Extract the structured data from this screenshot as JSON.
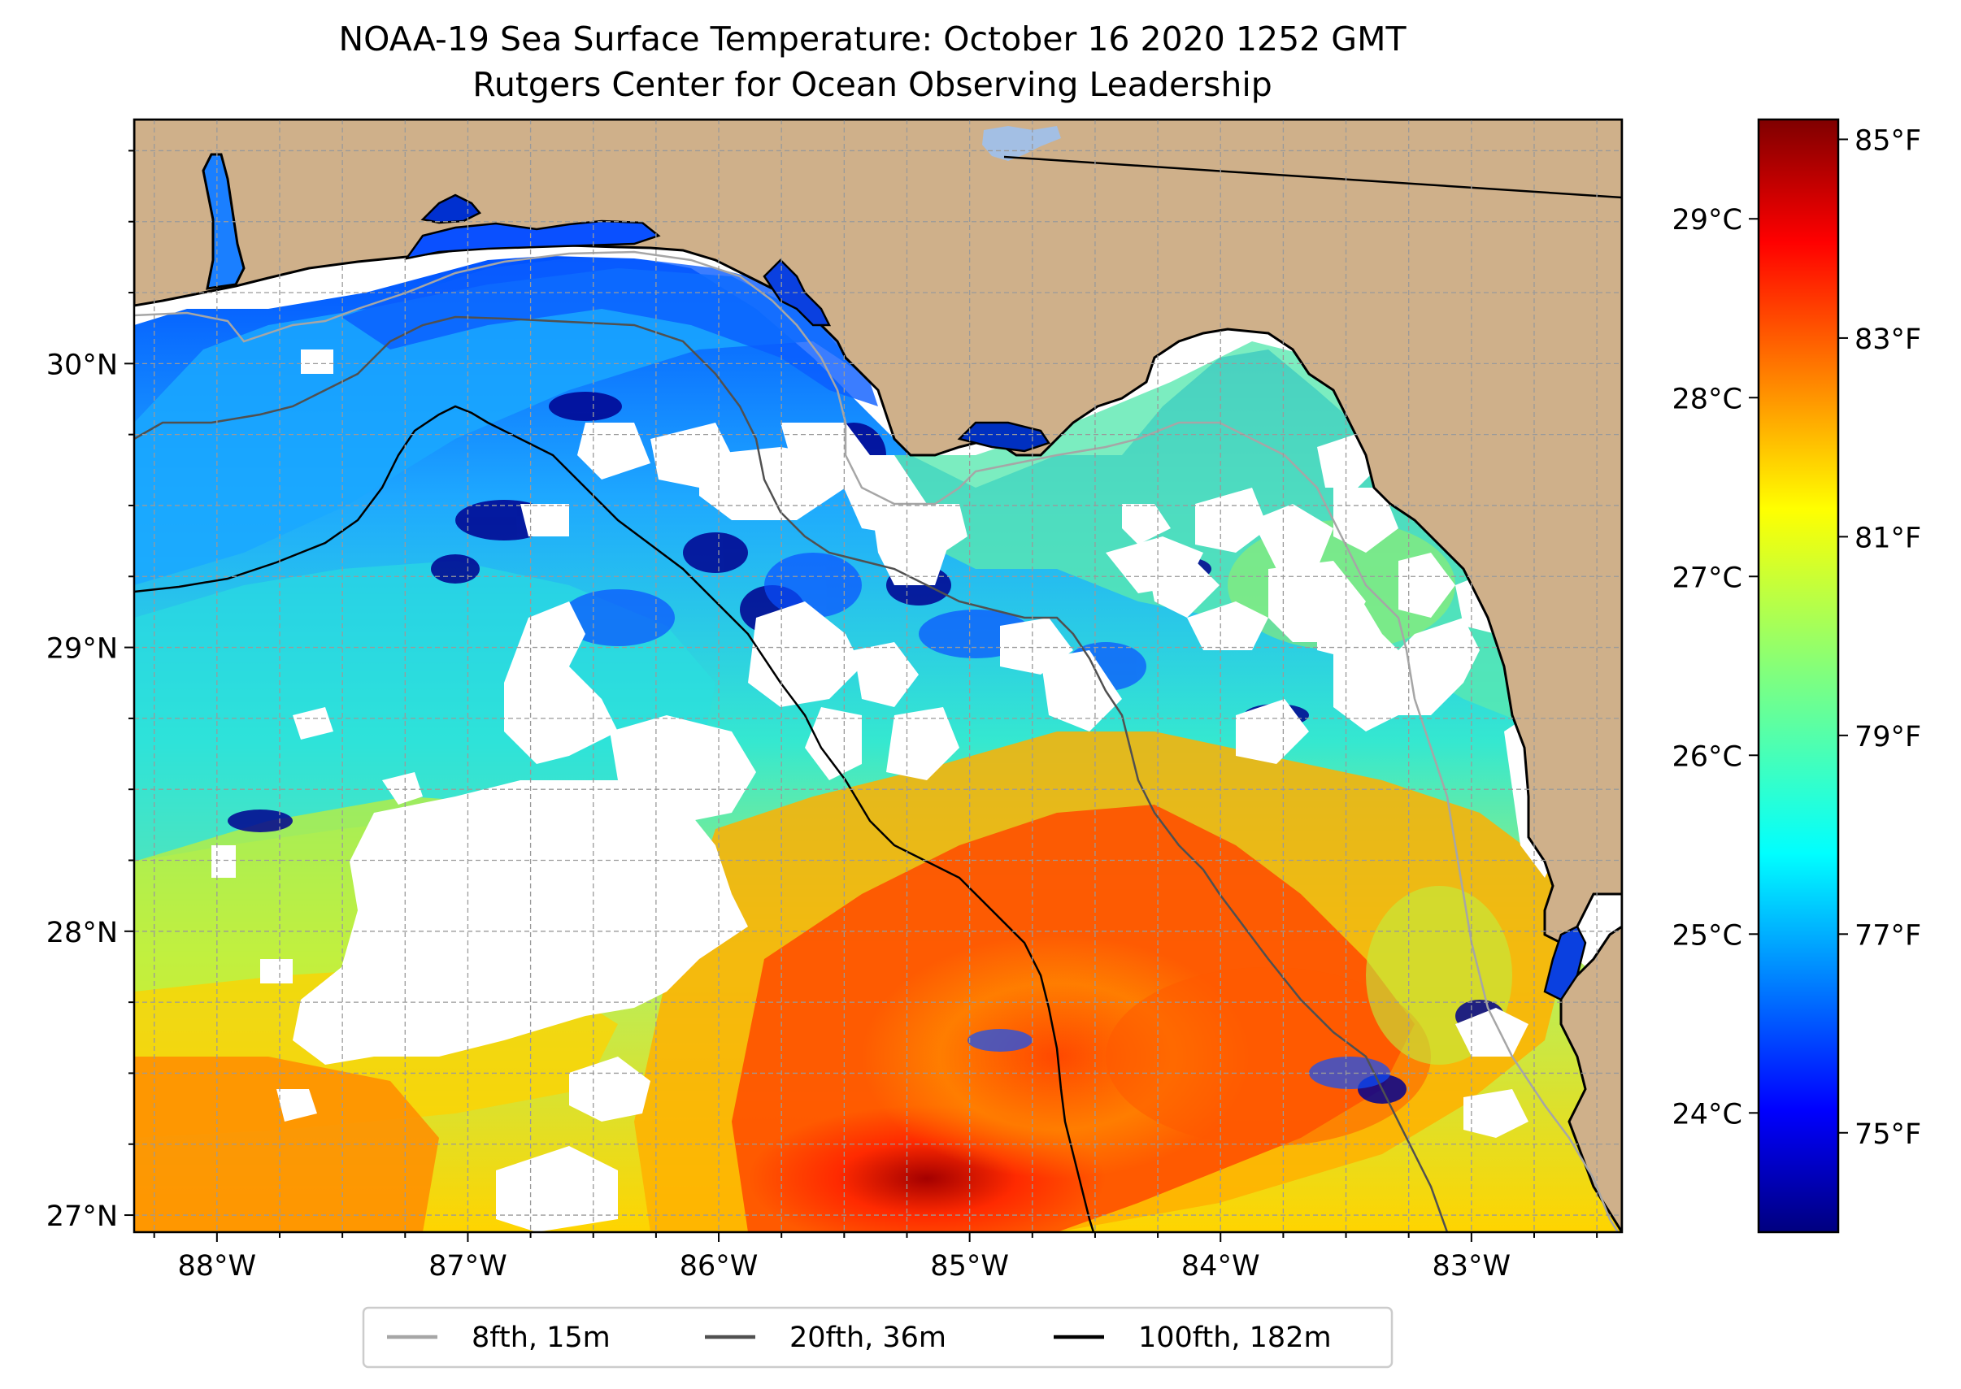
{
  "title_line1": "NOAA-19 Sea Surface Temperature: October 16 2020 1252 GMT",
  "title_line2": "Rutgers Center for Ocean Observing Leadership",
  "lat_ticks": [
    {
      "label": "30°N",
      "value": 30
    },
    {
      "label": "29°N",
      "value": 29
    },
    {
      "label": "28°N",
      "value": 28
    },
    {
      "label": "27°N",
      "value": 27
    }
  ],
  "lon_ticks": [
    {
      "label": "88°W",
      "value": -88
    },
    {
      "label": "87°W",
      "value": -87
    },
    {
      "label": "86°W",
      "value": -86
    },
    {
      "label": "85°W",
      "value": -85
    },
    {
      "label": "84°W",
      "value": -84
    },
    {
      "label": "83°W",
      "value": -83
    }
  ],
  "extent": {
    "lon_min": -88.33,
    "lon_max": -82.4,
    "lat_min": 26.94,
    "lat_max": 30.86
  },
  "colorbar": {
    "colormap": "jet",
    "min_f": 74.0,
    "max_f": 85.2,
    "fahrenheit_ticks": [
      {
        "label": "85°F",
        "value": 85
      },
      {
        "label": "83°F",
        "value": 83
      },
      {
        "label": "81°F",
        "value": 81
      },
      {
        "label": "79°F",
        "value": 79
      },
      {
        "label": "77°F",
        "value": 77
      },
      {
        "label": "75°F",
        "value": 75
      }
    ],
    "celsius_ticks": [
      {
        "label": "29°C",
        "value_f": 84.2
      },
      {
        "label": "28°C",
        "value_f": 82.4
      },
      {
        "label": "27°C",
        "value_f": 80.6
      },
      {
        "label": "26°C",
        "value_f": 78.8
      },
      {
        "label": "25°C",
        "value_f": 77.0
      },
      {
        "label": "24°C",
        "value_f": 75.2
      }
    ]
  },
  "legend": [
    {
      "label": "8fth, 15m",
      "color": "#a6a6a6"
    },
    {
      "label": "20fth, 36m",
      "color": "#505050"
    },
    {
      "label": "100fth, 182m",
      "color": "#000000"
    }
  ],
  "colors": {
    "land": "#cfb08a",
    "no_data": "#ffffff",
    "grid": "#9a9a9a",
    "lake": "#a3bfe4"
  }
}
